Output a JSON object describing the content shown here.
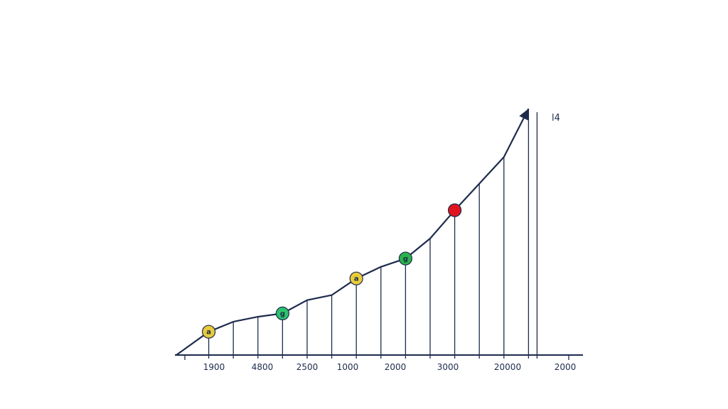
{
  "chart_data": {
    "type": "line",
    "title": "",
    "xlabel": "",
    "ylabel": "",
    "x_tick_labels": [
      "1900",
      "4800",
      "2500",
      "1000",
      "2000",
      "3000",
      "20000",
      "2000"
    ],
    "series": [
      {
        "values": [
          0,
          1.4,
          2.0,
          2.3,
          2.5,
          3.3,
          3.6,
          4.6,
          5.3,
          5.8,
          7.0,
          8.7,
          10.3,
          11.9,
          14.8
        ]
      }
    ],
    "markers": [
      {
        "point_index": 1,
        "label": "a",
        "color": "#e8cc3a"
      },
      {
        "point_index": 4,
        "label": "g",
        "color": "#2cc36b"
      },
      {
        "point_index": 7,
        "label": "a",
        "color": "#e8cc3a"
      },
      {
        "point_index": 9,
        "label": "g",
        "color": "#2bb24c"
      },
      {
        "point_index": 11,
        "label": "",
        "color": "#e0141e"
      }
    ],
    "annotation": "l4",
    "ylim": [
      0,
      16
    ],
    "grid": false,
    "legend": "none",
    "line_color": "#1d2b4c"
  }
}
